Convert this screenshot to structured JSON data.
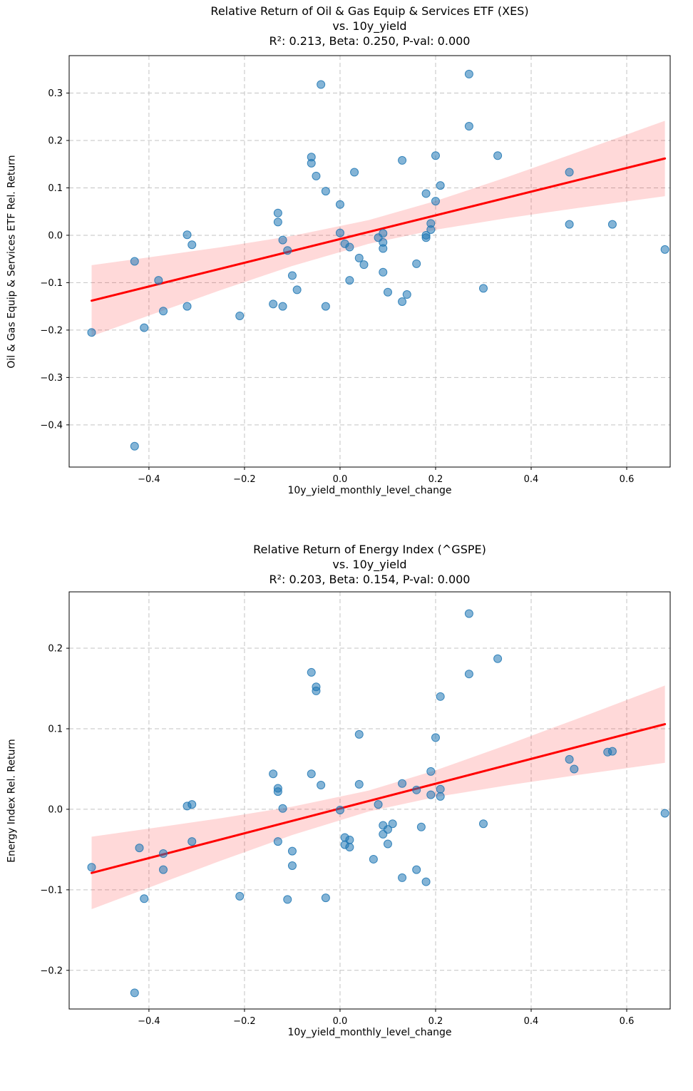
{
  "chart_data": [
    {
      "type": "scatter",
      "title_lines": [
        "Relative Return of Oil & Gas Equip & Services ETF (XES)",
        "vs. 10y_yield",
        "R²: 0.213, Beta: 0.250, P-val: 0.000"
      ],
      "xlabel": "10y_yield_monthly_level_change",
      "ylabel": "Oil & Gas Equip & Services ETF Rel. Return",
      "xlim": [
        -0.567,
        0.691
      ],
      "ylim": [
        -0.489,
        0.379
      ],
      "xticks": [
        -0.4,
        -0.2,
        0.0,
        0.2,
        0.4,
        0.6
      ],
      "yticks": [
        0.3,
        0.2,
        0.1,
        0.0,
        -0.1,
        -0.2,
        -0.3,
        -0.4
      ],
      "grid": true,
      "regression": {
        "slope": 0.25,
        "intercept": -0.008
      },
      "band": {
        "x": [
          -0.52,
          -0.4,
          -0.25,
          -0.1,
          0.06,
          0.2,
          0.35,
          0.5,
          0.68
        ],
        "half_width": [
          0.075,
          0.0614,
          0.0453,
          0.0317,
          0.025,
          0.0303,
          0.0433,
          0.0592,
          0.0796
        ]
      },
      "points": [
        [
          -0.52,
          -0.205
        ],
        [
          -0.43,
          -0.445
        ],
        [
          -0.43,
          -0.055
        ],
        [
          -0.41,
          -0.195
        ],
        [
          -0.38,
          -0.095
        ],
        [
          -0.37,
          -0.16
        ],
        [
          -0.32,
          0.001
        ],
        [
          -0.32,
          -0.15
        ],
        [
          -0.31,
          -0.02
        ],
        [
          -0.21,
          -0.17
        ],
        [
          -0.14,
          -0.145
        ],
        [
          -0.13,
          0.047
        ],
        [
          -0.13,
          0.028
        ],
        [
          -0.12,
          -0.15
        ],
        [
          -0.12,
          -0.01
        ],
        [
          -0.11,
          -0.032
        ],
        [
          -0.1,
          -0.085
        ],
        [
          -0.09,
          -0.115
        ],
        [
          -0.06,
          0.165
        ],
        [
          -0.06,
          0.152
        ],
        [
          -0.05,
          0.125
        ],
        [
          -0.04,
          0.318
        ],
        [
          -0.03,
          0.093
        ],
        [
          -0.03,
          -0.15
        ],
        [
          0.0,
          0.065
        ],
        [
          0.0,
          0.005
        ],
        [
          0.01,
          -0.018
        ],
        [
          0.02,
          -0.025
        ],
        [
          0.02,
          -0.095
        ],
        [
          0.03,
          0.133
        ],
        [
          0.04,
          -0.048
        ],
        [
          0.05,
          -0.062
        ],
        [
          0.08,
          -0.005
        ],
        [
          0.09,
          -0.015
        ],
        [
          0.09,
          -0.028
        ],
        [
          0.09,
          0.004
        ],
        [
          0.09,
          -0.078
        ],
        [
          0.1,
          -0.12
        ],
        [
          0.13,
          0.158
        ],
        [
          0.13,
          -0.14
        ],
        [
          0.14,
          -0.125
        ],
        [
          0.16,
          -0.06
        ],
        [
          0.18,
          0.088
        ],
        [
          0.18,
          0.0
        ],
        [
          0.18,
          -0.005
        ],
        [
          0.19,
          0.025
        ],
        [
          0.19,
          0.012
        ],
        [
          0.2,
          0.168
        ],
        [
          0.2,
          0.072
        ],
        [
          0.21,
          0.105
        ],
        [
          0.27,
          0.34
        ],
        [
          0.27,
          0.23
        ],
        [
          0.3,
          -0.112
        ],
        [
          0.33,
          0.168
        ],
        [
          0.48,
          0.133
        ],
        [
          0.48,
          0.023
        ],
        [
          0.57,
          0.023
        ],
        [
          0.68,
          -0.03
        ]
      ],
      "colors": {
        "point": "#1f77b4",
        "line": "#ff0000",
        "band": "#ff0000",
        "grid": "#c3c3c3"
      }
    },
    {
      "type": "scatter",
      "title_lines": [
        "Relative Return of Energy Index (^GSPE)",
        "vs. 10y_yield",
        "R²: 0.203, Beta: 0.154, P-val: 0.000"
      ],
      "xlabel": "10y_yield_monthly_level_change",
      "ylabel": "Energy Index Rel. Return",
      "xlim": [
        -0.567,
        0.691
      ],
      "ylim": [
        -0.248,
        0.27
      ],
      "xticks": [
        -0.4,
        -0.2,
        0.0,
        0.2,
        0.4,
        0.6
      ],
      "yticks": [
        0.2,
        0.1,
        0.0,
        -0.1,
        -0.2
      ],
      "grid": true,
      "regression": {
        "slope": 0.154,
        "intercept": 0.001
      },
      "band": {
        "x": [
          -0.52,
          -0.4,
          -0.25,
          -0.1,
          0.06,
          0.2,
          0.35,
          0.5,
          0.68
        ],
        "half_width": [
          0.045,
          0.0366,
          0.0264,
          0.0176,
          0.013,
          0.0166,
          0.0252,
          0.0352,
          0.048
        ]
      },
      "points": [
        [
          -0.52,
          -0.072
        ],
        [
          -0.43,
          -0.228
        ],
        [
          -0.42,
          -0.048
        ],
        [
          -0.41,
          -0.111
        ],
        [
          -0.37,
          -0.055
        ],
        [
          -0.37,
          -0.075
        ],
        [
          -0.32,
          0.004
        ],
        [
          -0.31,
          0.006
        ],
        [
          -0.31,
          -0.04
        ],
        [
          -0.21,
          -0.108
        ],
        [
          -0.14,
          0.044
        ],
        [
          -0.13,
          0.022
        ],
        [
          -0.13,
          0.026
        ],
        [
          -0.13,
          -0.04
        ],
        [
          -0.12,
          0.001
        ],
        [
          -0.11,
          -0.112
        ],
        [
          -0.1,
          -0.052
        ],
        [
          -0.1,
          -0.07
        ],
        [
          -0.06,
          0.17
        ],
        [
          -0.06,
          0.044
        ],
        [
          -0.05,
          0.152
        ],
        [
          -0.05,
          0.147
        ],
        [
          -0.04,
          0.03
        ],
        [
          -0.03,
          -0.11
        ],
        [
          0.0,
          -0.001
        ],
        [
          0.01,
          -0.035
        ],
        [
          0.01,
          -0.044
        ],
        [
          0.02,
          -0.038
        ],
        [
          0.02,
          -0.047
        ],
        [
          0.04,
          0.093
        ],
        [
          0.04,
          0.031
        ],
        [
          0.07,
          -0.062
        ],
        [
          0.08,
          0.006
        ],
        [
          0.09,
          -0.02
        ],
        [
          0.09,
          -0.031
        ],
        [
          0.1,
          -0.025
        ],
        [
          0.1,
          -0.043
        ],
        [
          0.11,
          -0.018
        ],
        [
          0.13,
          0.032
        ],
        [
          0.13,
          -0.085
        ],
        [
          0.16,
          0.024
        ],
        [
          0.16,
          -0.075
        ],
        [
          0.17,
          -0.022
        ],
        [
          0.18,
          -0.09
        ],
        [
          0.19,
          0.047
        ],
        [
          0.19,
          0.018
        ],
        [
          0.2,
          0.089
        ],
        [
          0.21,
          0.025
        ],
        [
          0.21,
          0.016
        ],
        [
          0.21,
          0.14
        ],
        [
          0.27,
          0.243
        ],
        [
          0.27,
          0.168
        ],
        [
          0.3,
          -0.018
        ],
        [
          0.33,
          0.187
        ],
        [
          0.48,
          0.062
        ],
        [
          0.49,
          0.05
        ],
        [
          0.56,
          0.071
        ],
        [
          0.57,
          0.072
        ],
        [
          0.68,
          -0.005
        ]
      ],
      "colors": {
        "point": "#1f77b4",
        "line": "#ff0000",
        "band": "#ff0000",
        "grid": "#c3c3c3"
      }
    }
  ]
}
